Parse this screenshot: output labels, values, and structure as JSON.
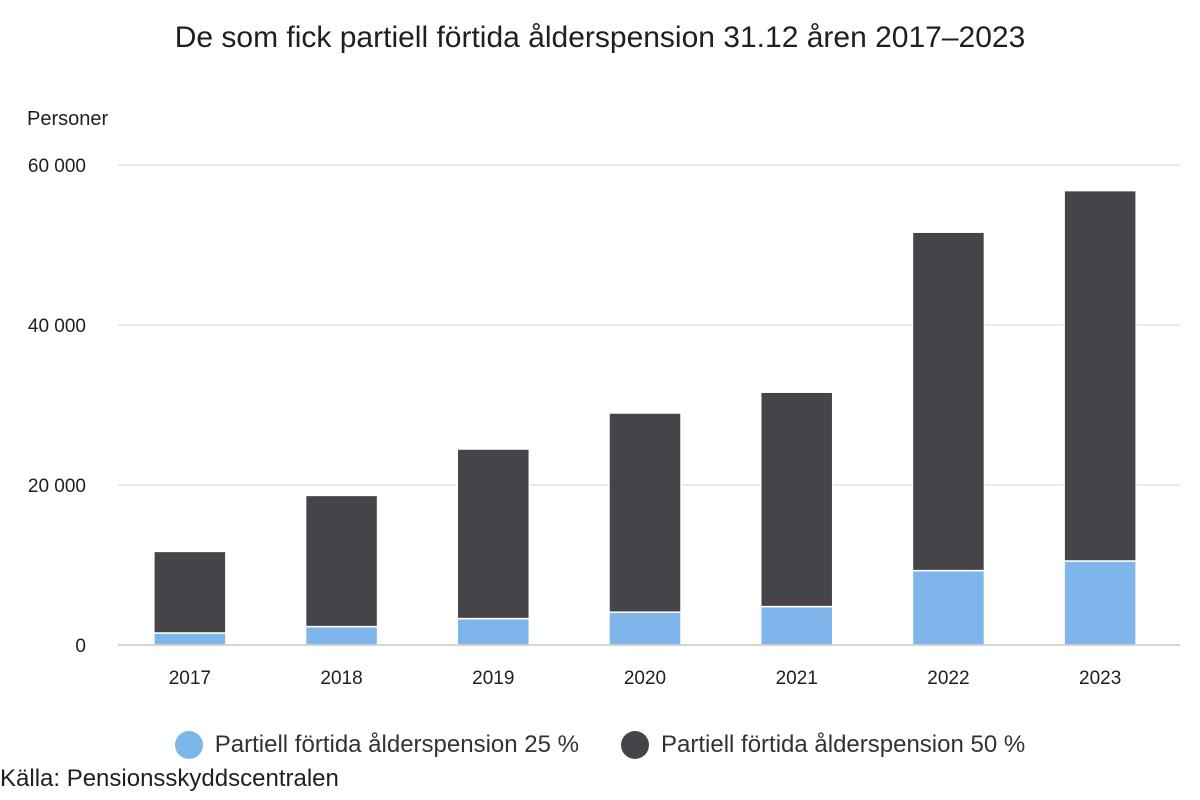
{
  "chart_data": {
    "type": "bar",
    "stacked": true,
    "title": "De som fick partiell förtida ålderspension 31.12 åren 2017–2023",
    "ylabel": "Personer",
    "xlabel": "",
    "categories": [
      "2017",
      "2018",
      "2019",
      "2020",
      "2021",
      "2022",
      "2023"
    ],
    "series": [
      {
        "name": "Partiell förtida ålderspension 25 %",
        "color": "#7eb5ea",
        "values": [
          1500,
          2300,
          3300,
          4100,
          4800,
          9300,
          10500
        ]
      },
      {
        "name": "Partiell förtida ålderspension 50 %",
        "color": "#444449",
        "values": [
          10200,
          16400,
          21200,
          24900,
          26800,
          42300,
          46300
        ]
      }
    ],
    "ylim": [
      0,
      60000
    ],
    "yticks": [
      0,
      20000,
      40000,
      60000
    ],
    "ytick_labels": [
      "0",
      "20 000",
      "40 000",
      "60 000"
    ],
    "grid": true,
    "legend_position": "bottom"
  },
  "footer": {
    "source": "Källa: Pensionsskyddscentralen"
  }
}
